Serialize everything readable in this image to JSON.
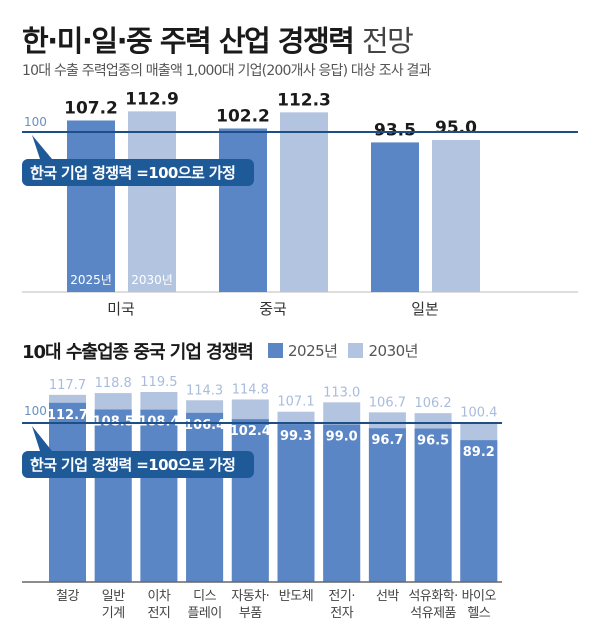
{
  "title_bold": "한·미·일·중 주력 산업 경쟁력",
  "title_light": "전망",
  "subtitle": "10대 수출 주력업종의 매출액 1,000대 기업(200개사 응답) 대상 조사 결과",
  "colors": {
    "y2025": "#5b86c5",
    "y2030": "#b3c4e0",
    "line": "#1d4f86",
    "callout": "#1f5a98"
  },
  "chart_data": [
    {
      "type": "bar",
      "categories": [
        "미국",
        "중국",
        "일본"
      ],
      "series": [
        {
          "name": "2025년",
          "values": [
            107.2,
            102.2,
            93.5
          ]
        },
        {
          "name": "2030년",
          "values": [
            112.9,
            112.3,
            95.0
          ]
        }
      ],
      "reference_line": {
        "value": 100,
        "label": "100"
      },
      "annotation": "한국 기업 경쟁력 =100으로 가정",
      "ylim": [
        0,
        120
      ]
    },
    {
      "type": "bar",
      "title": "10대 수출업종 중국 기업 경쟁력",
      "legend": [
        "2025년",
        "2030년"
      ],
      "legend_placement": "top",
      "categories": [
        "철강",
        "일반 기계",
        "이차 전지",
        "디스 플레이",
        "자동차· 부품",
        "반도체",
        "전기· 전자",
        "선박",
        "석유화학· 석유제품",
        "바이오 헬스"
      ],
      "category_lines": [
        [
          "철강"
        ],
        [
          "일반",
          "기계"
        ],
        [
          "이차",
          "전지"
        ],
        [
          "디스",
          "플레이"
        ],
        [
          "자동차·",
          "부품"
        ],
        [
          "반도체"
        ],
        [
          "전기·",
          "전자"
        ],
        [
          "선박"
        ],
        [
          "석유화학·",
          "석유제품"
        ],
        [
          "바이오",
          "헬스"
        ]
      ],
      "series": [
        {
          "name": "2025년",
          "values": [
            112.7,
            108.5,
            108.4,
            106.4,
            102.4,
            99.3,
            99.0,
            96.7,
            96.5,
            89.2
          ]
        },
        {
          "name": "2030년",
          "values": [
            117.7,
            118.8,
            119.5,
            114.3,
            114.8,
            107.1,
            113.0,
            106.7,
            106.2,
            100.4
          ]
        }
      ],
      "reference_line": {
        "value": 100,
        "label": "100"
      },
      "annotation": "한국 기업 경쟁력 =100으로 가정",
      "ylim": [
        0,
        125
      ]
    }
  ]
}
